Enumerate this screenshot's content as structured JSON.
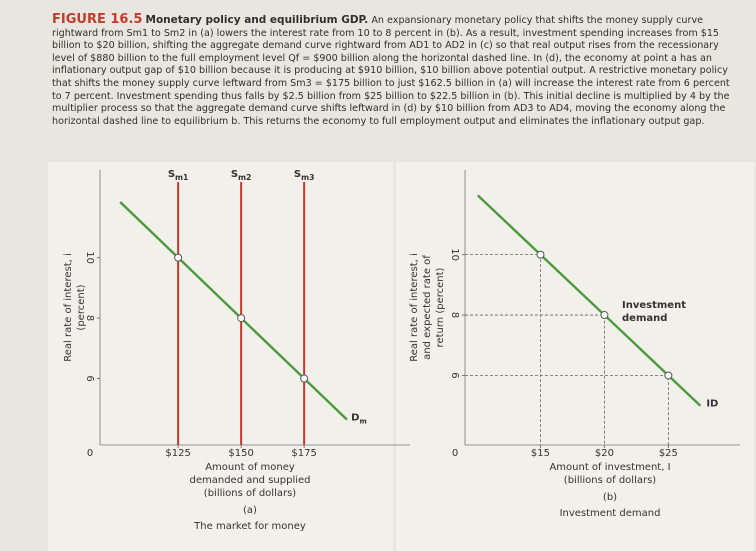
{
  "figure": {
    "label": "FIGURE 16.5",
    "title": "Monetary policy and equilibrium GDP.",
    "caption": "An expansionary monetary policy that shifts the money supply curve rightward from Sm1 to Sm2 in (a) lowers the interest rate from 10 to 8 percent in (b). As a result, investment spending increases from $15 billion to $20 billion, shifting the aggregate demand curve rightward from AD1 to AD2 in (c) so that real output rises from the recessionary level of $880 billion to the full employment level Qf = $900 billion along the horizontal dashed line. In (d), the economy at point a has an inflationary output gap of $10 billion because it is producing at $910 billion, $10 billion above potential output. A restrictive monetary policy that shifts the money supply curve leftward from Sm3 = $175 billion to just $162.5 billion in (a) will increase the interest rate from 6 percent to 7 percent. Investment spending thus falls by $2.5 billion from $25 billion to $22.5 billion in (b). This initial decline is multiplied by 4 by the multiplier process so that the aggregate demand curve shifts leftward in (d) by $10 billion from AD3 to AD4, moving the economy along the horizontal dashed line to equilibrium b. This returns the economy to full employment output and eliminates the inflationary output gap."
  },
  "chart_data": [
    {
      "type": "line",
      "panel_label": "(a)",
      "subtitle": "The market for money",
      "x_label": [
        "Amount of money",
        "demanded and supplied",
        "(billions of dollars)"
      ],
      "y_label": [
        "Real rate of interest, i",
        "(percent)"
      ],
      "origin_label": "0",
      "xlim": [
        94,
        217
      ],
      "ylim": [
        3.8,
        12.9
      ],
      "xticks": [
        {
          "value": 125,
          "label": "$125"
        },
        {
          "value": 150,
          "label": "$150"
        },
        {
          "value": 175,
          "label": "$175"
        }
      ],
      "yticks": [
        6,
        8,
        10
      ],
      "series": [
        {
          "name": "D",
          "name_sub": "m",
          "color": "#4c9a3e",
          "x": [
            102,
            125,
            150,
            175,
            192
          ],
          "values": [
            11.84,
            10,
            8,
            6,
            4.64
          ],
          "markers": [
            false,
            true,
            true,
            true,
            false
          ]
        }
      ],
      "supply_lines": [
        {
          "name": "S",
          "name_sub": "m1",
          "x": 125
        },
        {
          "name": "S",
          "name_sub": "m2",
          "x": 150
        },
        {
          "name": "S",
          "name_sub": "m3",
          "x": 175
        }
      ],
      "supply_color": "#c43a2c",
      "guides": "none"
    },
    {
      "type": "line",
      "panel_label": "(b)",
      "subtitle": "Investment demand",
      "x_label": [
        "Amount of investment, I",
        "(billions of dollars)"
      ],
      "y_label": [
        "Real rate of interest, i",
        "and expected rate of",
        "return (percent)"
      ],
      "origin_label": "0",
      "xlim": [
        9.1,
        30.6
      ],
      "ylim": [
        3.7,
        12.8
      ],
      "xticks": [
        {
          "value": 15,
          "label": "$15"
        },
        {
          "value": 20,
          "label": "$20"
        },
        {
          "value": 25,
          "label": "$25"
        }
      ],
      "yticks": [
        6,
        8,
        10
      ],
      "series": [
        {
          "name": "ID",
          "color": "#4c9a3e",
          "x": [
            10.1,
            15,
            20,
            25,
            27.5
          ],
          "values": [
            11.96,
            10,
            8,
            6,
            5
          ],
          "markers": [
            false,
            true,
            true,
            true,
            false
          ]
        }
      ],
      "annotation": [
        "Investment",
        "demand"
      ],
      "guides": "dashed"
    }
  ]
}
